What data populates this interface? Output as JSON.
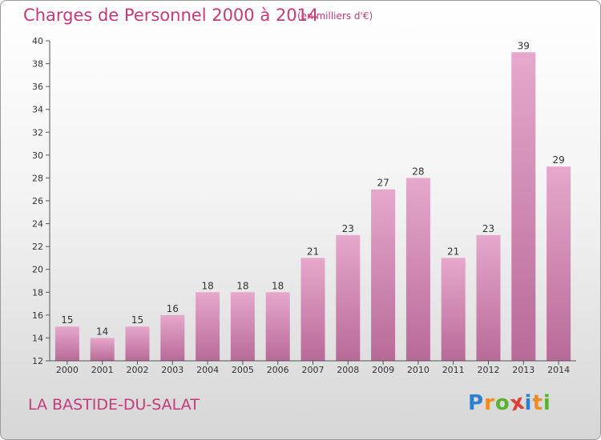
{
  "header": {
    "title": "Charges de Personnel 2000 à 2014",
    "subtitle": "(en milliers d'€)"
  },
  "footer": {
    "place": "LA BASTIDE-DU-SALAT",
    "logo_letters": [
      "P",
      "r",
      "o",
      "x",
      "i",
      "t",
      "i"
    ],
    "logo_colors": [
      "#2f7fd0",
      "#f08a1c",
      "#5ab233",
      "#e03c31",
      "#2f7fd0",
      "#f08a1c",
      "#5ab233"
    ]
  },
  "colors": {
    "bar_top": "#e6a8cc",
    "bar_bottom": "#b86a98",
    "accent": "#c8387a"
  },
  "chart_data": {
    "type": "bar",
    "title": "Charges de Personnel 2000 à 2014",
    "subtitle": "(en milliers d'€)",
    "categories": [
      "2000",
      "2001",
      "2002",
      "2003",
      "2004",
      "2005",
      "2006",
      "2007",
      "2008",
      "2009",
      "2010",
      "2011",
      "2012",
      "2013",
      "2014"
    ],
    "values": [
      15,
      14,
      15,
      16,
      18,
      18,
      18,
      21,
      23,
      27,
      28,
      21,
      23,
      39,
      29
    ],
    "ylim": [
      12,
      40
    ],
    "yticks": [
      12,
      14,
      16,
      18,
      20,
      22,
      24,
      26,
      28,
      30,
      32,
      34,
      36,
      38,
      40
    ],
    "grid": false,
    "xlabel": "",
    "ylabel": ""
  }
}
